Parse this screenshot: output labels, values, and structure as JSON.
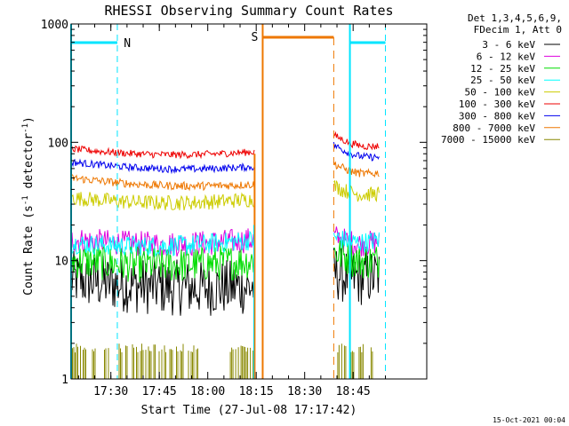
{
  "chart_data": {
    "type": "line",
    "title": "RHESSI Observing Summary Count Rates",
    "xlabel": "Start Time (27-Jul-08 17:17:42)",
    "ylabel_main": "Count Rate (s",
    "ylabel_sup1": "-1",
    "ylabel_mid": " detector",
    "ylabel_sup2": "-1",
    "ylabel_end": ")",
    "yscale": "log",
    "ylim": [
      1,
      1000
    ],
    "y_ticks": [
      "1",
      "10",
      "100",
      "1000"
    ],
    "x_ticks": [
      "17:30",
      "17:45",
      "18:00",
      "18:15",
      "18:30",
      "18:45"
    ],
    "legend": {
      "header": [
        "Det 1,3,4,5,6,9,",
        "FDecim 1, Att 0"
      ],
      "position": "right"
    },
    "series": [
      {
        "name": "3 - 6 keV",
        "color": "#000000",
        "seg1": {
          "start": 7,
          "end": 6
        },
        "seg2": {
          "start": 8,
          "end": 7.5
        }
      },
      {
        "name": "6 - 12 keV",
        "color": "#dd00dd",
        "seg1": {
          "start": 15,
          "end": 15
        },
        "seg2": {
          "start": 16,
          "end": 14.5
        }
      },
      {
        "name": "12 - 25 keV",
        "color": "#00dd00",
        "seg1": {
          "start": 10,
          "end": 10
        },
        "seg2": {
          "start": 12,
          "end": 10
        }
      },
      {
        "name": "25 - 50 keV",
        "color": "#00ffff",
        "seg1": {
          "start": 14,
          "end": 15
        },
        "seg2": {
          "start": 16,
          "end": 15
        }
      },
      {
        "name": "50 - 100 keV",
        "color": "#cccc00",
        "seg1": {
          "start": 34,
          "end": 33
        },
        "seg2": {
          "start": 43,
          "end": 37
        }
      },
      {
        "name": "100 - 300 keV",
        "color": "#ee0000",
        "seg1": {
          "start": 88,
          "end": 83
        },
        "seg2": {
          "start": 115,
          "end": 93
        }
      },
      {
        "name": "300 - 800 keV",
        "color": "#0000ee",
        "seg1": {
          "start": 68,
          "end": 62
        },
        "seg2": {
          "start": 95,
          "end": 75
        }
      },
      {
        "name": "800 - 7000 keV",
        "color": "#ee7700",
        "seg1": {
          "start": 50,
          "end": 44
        },
        "seg2": {
          "start": 66,
          "end": 55
        }
      },
      {
        "name": "7000 - 15000 keV",
        "color": "#888800",
        "seg1": {
          "start": 1,
          "end": 1
        },
        "seg2": {
          "start": 1,
          "end": 1
        }
      }
    ],
    "annotations": {
      "night_label": "N",
      "saa_label": "S",
      "night_color": "#00e5ff",
      "saa_color": "#ee7700"
    }
  },
  "footer": {
    "timestamp": "15-Oct-2021 00:04"
  }
}
